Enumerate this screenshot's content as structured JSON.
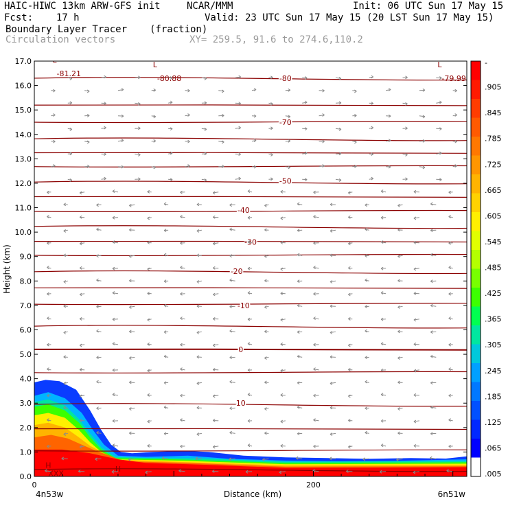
{
  "header": {
    "title_left": "HAIC-HIWC 13km ARW-GFS init",
    "center_label": "NCAR/MMM",
    "init": "Init: 06 UTC Sun 17 May 15",
    "fcst": "Fcst:    17 h",
    "valid": "Valid: 23 UTC Sun 17 May 15 (20 LST Sun 17 May 15)",
    "field": "Boundary Layer Tracer",
    "units": "(fraction)",
    "overlay": "Circulation vectors",
    "xy": "XY= 259.5, 91.6 to 274.6,110.2"
  },
  "chart_data": {
    "type": "heatmap",
    "ylabel": "Height (km)",
    "xlabel": "Distance (km)",
    "ylim": [
      0,
      17
    ],
    "xlim": [
      0,
      310
    ],
    "y_ticks": [
      "0.0",
      "1.0",
      "2.0",
      "3.0",
      "4.0",
      "5.0",
      "6.0",
      "7.0",
      "8.0",
      "9.0",
      "10.0",
      "11.0",
      "12.0",
      "13.0",
      "14.0",
      "15.0",
      "16.0",
      "17.0"
    ],
    "x_ticks": [
      {
        "label": "0",
        "x": 0
      },
      {
        "label": "200",
        "x": 200
      }
    ],
    "x_left_label": "4n53w",
    "x_right_label": "6n51w",
    "colorbar_labels": [
      "-",
      ".905",
      ".845",
      ".785",
      ".725",
      ".665",
      ".605",
      ".545",
      ".485",
      ".425",
      ".365",
      ".305",
      ".245",
      ".185",
      ".125",
      ".065",
      ".005"
    ],
    "colorbar_colors": [
      "#ff0000",
      "#ff1a00",
      "#ff3c00",
      "#ff5a00",
      "#ff7800",
      "#ff9600",
      "#ffb400",
      "#ffd200",
      "#fff000",
      "#e1ff00",
      "#b4ff00",
      "#78ff00",
      "#3cff00",
      "#00ff50",
      "#00e6a0",
      "#00c8dc",
      "#00a0ff",
      "#0078ff",
      "#0050ff",
      "#0028ff",
      "#0000ff",
      "#ffffff"
    ],
    "temperature_contours": [
      {
        "label": "-80",
        "y": 16.3,
        "x": 180
      },
      {
        "label": "-70",
        "y": 14.5,
        "x": 180
      },
      {
        "label": "-50",
        "y": 12.1,
        "x": 180
      },
      {
        "label": "-40",
        "y": 10.9,
        "x": 150
      },
      {
        "label": "-30",
        "y": 9.6,
        "x": 155
      },
      {
        "label": "-20",
        "y": 8.4,
        "x": 145
      },
      {
        "label": "-10",
        "y": 7.0,
        "x": 150
      },
      {
        "label": "0",
        "y": 5.2,
        "x": 148
      },
      {
        "label": "10",
        "y": 3.0,
        "x": 148
      }
    ],
    "extrema_labels": [
      "-81.21",
      "-80.88",
      "-79.99"
    ],
    "low_marker": "L",
    "high_marker": "H",
    "bottom_marker": "XXX"
  }
}
